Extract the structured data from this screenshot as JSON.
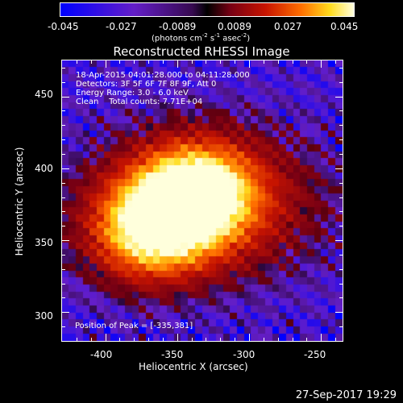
{
  "colorbar": {
    "ticks": [
      "-0.045",
      "-0.027",
      "-0.0089",
      "0.0089",
      "0.027",
      "0.045"
    ],
    "units_main": "(photons cm",
    "units_sup1": "-2",
    "units_mid": " s",
    "units_sup2": "-1",
    "units_end": " asec",
    "units_sup3": "-2",
    "units_close": ")"
  },
  "title": "Reconstructed RHESSI Image",
  "info": {
    "line1": "18-Apr-2015 04:01:28.000 to 04:11:28.000",
    "line2": "Detectors: 3F 5F 6F 7F 8F 9F, Att 0",
    "line3": "Energy Range: 3.0 - 6.0 keV",
    "line4": "Clean    Total counts: 7.71E+04"
  },
  "peak": "Position of Peak = [-335,381]",
  "axes": {
    "xlabel": "Heliocentric X (arcsec)",
    "ylabel": "Heliocentric Y (arcsec)",
    "xticks": [
      "-400",
      "-350",
      "-300",
      "-250"
    ],
    "yticks": [
      "450",
      "400",
      "350",
      "300"
    ],
    "xlim": [
      -430,
      -235
    ],
    "ylim": [
      280,
      475
    ]
  },
  "image": {
    "sources": [
      {
        "x": -337,
        "y": 382,
        "peak": 1.0
      },
      {
        "x": -368,
        "y": 357,
        "peak": 0.9
      }
    ]
  },
  "footer": "27-Sep-2017 19:29"
}
